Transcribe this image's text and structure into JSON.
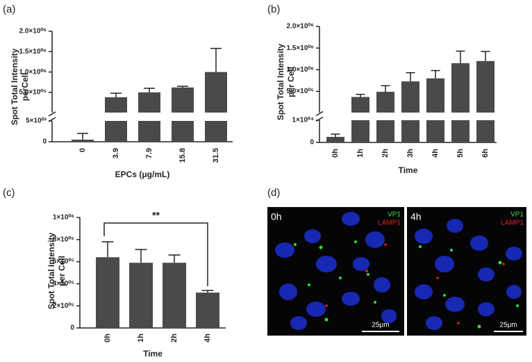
{
  "chart_data": [
    {
      "type": "bar",
      "panel": "(a)",
      "ylabel": [
        "Spot Total Intensity",
        "perCell"
      ],
      "xlabel": "EPCs (μg/mL)",
      "categories": [
        "0",
        "3.9",
        "7.9",
        "15.8",
        "31.5"
      ],
      "values": [
        500,
        380000,
        500000,
        620000,
        1000000
      ],
      "errors": [
        1500,
        100000,
        100000,
        30000,
        580000
      ],
      "color": "#4a4a4a",
      "y_segments": [
        {
          "ylim": [
            0,
            5000
          ],
          "yticks": [
            0,
            {
              "value": 5000,
              "label": "5×10⁰³"
            }
          ]
        },
        {
          "ylim": [
            5000,
            2000000
          ],
          "yticks": [
            {
              "value": 500000,
              "label": "5.0×10⁰⁵"
            },
            {
              "value": 1000000,
              "label": "1.0×10⁰⁶"
            },
            {
              "value": 1500000,
              "label": "1.5×10⁰⁶"
            },
            {
              "value": 2000000,
              "label": "2.0×10⁰⁶"
            }
          ]
        }
      ]
    },
    {
      "type": "bar",
      "panel": "(b)",
      "ylabel": [
        "Spot Total Intensity",
        "per Cell"
      ],
      "xlabel": "Time",
      "categories": [
        "0h",
        "1h",
        "2h",
        "3h",
        "4h",
        "5h",
        "6h"
      ],
      "values": [
        2500,
        370000,
        490000,
        730000,
        800000,
        1150000,
        1200000
      ],
      "errors": [
        1250,
        60000,
        140000,
        200000,
        180000,
        280000,
        220000
      ],
      "color": "#4a4a4a",
      "y_segments": [
        {
          "ylim": [
            0,
            10000
          ],
          "yticks": [
            0,
            {
              "value": 10000,
              "label": "1×10⁰⁴"
            }
          ]
        },
        {
          "ylim": [
            10000,
            2000000
          ],
          "yticks": [
            {
              "value": 500000,
              "label": "5.0×10⁰⁵"
            },
            {
              "value": 1000000,
              "label": "1.0×10⁰⁶"
            },
            {
              "value": 1500000,
              "label": "1.5×10⁰⁶"
            },
            {
              "value": 2000000,
              "label": "2.0×10⁰⁶"
            }
          ]
        }
      ]
    },
    {
      "type": "bar",
      "panel": "(c)",
      "ylabel": [
        "Spot Total Intensity",
        "per Cell"
      ],
      "xlabel": "Time",
      "categories": [
        "0h",
        "1h",
        "2h",
        "4h"
      ],
      "values": [
        640000,
        590000,
        590000,
        320000
      ],
      "errors": [
        140000,
        120000,
        70000,
        20000
      ],
      "color": "#4a4a4a",
      "annotation": "**",
      "ylim": [
        0,
        1000000
      ],
      "yticks": [
        0,
        {
          "value": 200000,
          "label": "2×10⁰⁵"
        },
        {
          "value": 400000,
          "label": "4×10⁰⁵"
        },
        {
          "value": 600000,
          "label": "6×10⁰⁵"
        },
        {
          "value": 800000,
          "label": "8×10⁰⁵"
        },
        {
          "value": 1000000,
          "label": "1×10⁰⁶"
        }
      ]
    }
  ],
  "images": {
    "panel": "(d)",
    "frames": [
      {
        "time": "0h",
        "channels": [
          "VP1",
          "LAMP1"
        ],
        "scale": "25μm"
      },
      {
        "time": "4h",
        "channels": [
          "VP1",
          "LAMP1"
        ],
        "scale": "25μm"
      }
    ]
  }
}
